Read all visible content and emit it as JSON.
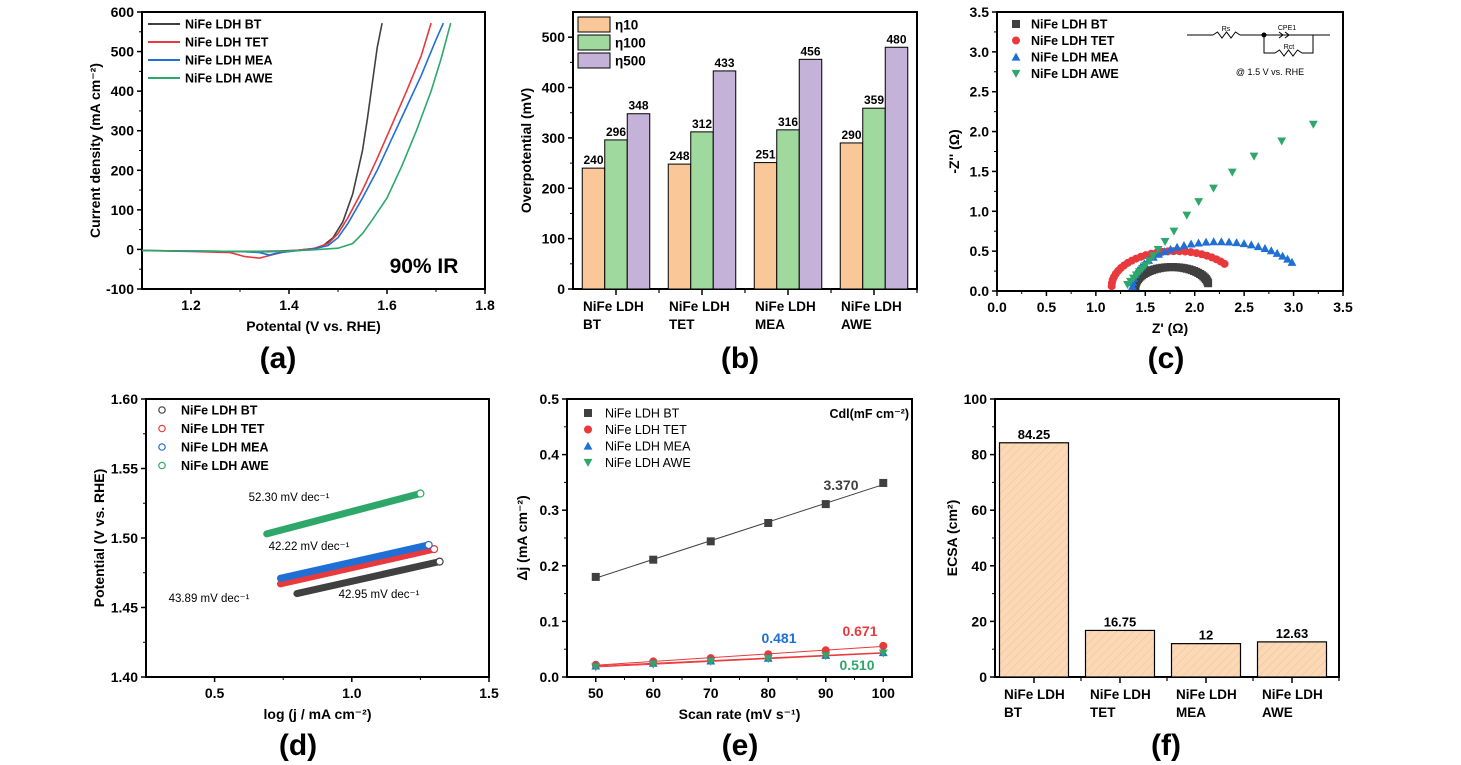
{
  "figure": {
    "panels": [
      "(a)",
      "(b)",
      "(c)",
      "(d)",
      "(e)",
      "(f)"
    ]
  },
  "colors": {
    "BT": "#404040",
    "TET": "#e8393c",
    "MEA": "#1f6fd6",
    "AWE": "#2ea86a",
    "eta10": "#fac898",
    "eta100": "#9fd99e",
    "eta500": "#c4b2d8",
    "ecsa_bar": "#fcd9b6"
  },
  "chart_data": [
    {
      "id": "a",
      "type": "line",
      "panel_label": "(a)",
      "title": "",
      "xlabel": "Potental (V vs. RHE)",
      "ylabel": "Current density (mA cm⁻²)",
      "xlim": [
        1.1,
        1.8
      ],
      "ylim": [
        -100,
        600
      ],
      "xticks": [
        1.2,
        1.4,
        1.6,
        1.8
      ],
      "yticks": [
        -100,
        0,
        100,
        200,
        300,
        400,
        500,
        600
      ],
      "annotation": "90% IR",
      "legend_position": "top-left",
      "series": [
        {
          "name": "NiFe LDH BT",
          "key": "BT",
          "x": [
            1.1,
            1.2,
            1.3,
            1.34,
            1.38,
            1.42,
            1.45,
            1.47,
            1.49,
            1.51,
            1.53,
            1.55,
            1.56,
            1.57,
            1.58,
            1.59
          ],
          "y": [
            -3,
            -4,
            -5,
            -5,
            -4,
            -2,
            2,
            10,
            30,
            70,
            140,
            250,
            330,
            420,
            510,
            572
          ]
        },
        {
          "name": "NiFe LDH TET",
          "key": "TET",
          "x": [
            1.1,
            1.2,
            1.28,
            1.31,
            1.34,
            1.37,
            1.4,
            1.45,
            1.48,
            1.5,
            1.52,
            1.55,
            1.58,
            1.61,
            1.64,
            1.67,
            1.69
          ],
          "y": [
            -3,
            -5,
            -8,
            -18,
            -22,
            -12,
            -4,
            2,
            15,
            40,
            80,
            150,
            230,
            315,
            400,
            490,
            572
          ]
        },
        {
          "name": "NiFe LDH MEA",
          "key": "MEA",
          "x": [
            1.1,
            1.2,
            1.3,
            1.34,
            1.36,
            1.38,
            1.42,
            1.45,
            1.48,
            1.5,
            1.52,
            1.55,
            1.58,
            1.61,
            1.64,
            1.67,
            1.7,
            1.715
          ],
          "y": [
            -3,
            -4,
            -5,
            -8,
            -14,
            -8,
            -3,
            1,
            10,
            30,
            65,
            130,
            200,
            280,
            360,
            440,
            530,
            572
          ]
        },
        {
          "name": "NiFe LDH AWE",
          "key": "AWE",
          "x": [
            1.1,
            1.2,
            1.3,
            1.36,
            1.4,
            1.45,
            1.5,
            1.53,
            1.55,
            1.57,
            1.6,
            1.63,
            1.66,
            1.69,
            1.71,
            1.73
          ],
          "y": [
            -3,
            -4,
            -5,
            -6,
            -4,
            -1,
            3,
            15,
            40,
            75,
            130,
            210,
            300,
            400,
            480,
            572
          ]
        }
      ]
    },
    {
      "id": "b",
      "type": "bar",
      "panel_label": "(b)",
      "title": "",
      "xlabel": "",
      "ylabel": "Overpotential (mV)",
      "ylim": [
        0,
        550
      ],
      "yticks": [
        0,
        100,
        200,
        300,
        400,
        500
      ],
      "categories": [
        [
          "NiFe LDH",
          "BT"
        ],
        [
          "NiFe LDH",
          "TET"
        ],
        [
          "NiFe LDH",
          "MEA"
        ],
        [
          "NiFe LDH",
          "AWE"
        ]
      ],
      "legend_position": "top-left",
      "series": [
        {
          "name": "η10",
          "key": "eta10",
          "values": [
            240,
            248,
            251,
            290
          ]
        },
        {
          "name": "η100",
          "key": "eta100",
          "values": [
            296,
            312,
            316,
            359
          ]
        },
        {
          "name": "η500",
          "key": "eta500",
          "values": [
            348,
            433,
            456,
            480
          ]
        }
      ]
    },
    {
      "id": "c",
      "type": "scatter",
      "panel_label": "(c)",
      "title": "",
      "xlabel": "Z' (Ω)",
      "ylabel": "-Z'' (Ω)",
      "xlim": [
        0,
        3.5
      ],
      "ylim": [
        0,
        3.5
      ],
      "xticks": [
        0.0,
        0.5,
        1.0,
        1.5,
        2.0,
        2.5,
        3.0,
        3.5
      ],
      "yticks": [
        0.0,
        0.5,
        1.0,
        1.5,
        2.0,
        2.5,
        3.0,
        3.5
      ],
      "legend_position": "top-left",
      "inset": {
        "Rs": "Rs",
        "CPE": "CPE1",
        "Rct": "Rct",
        "note": "@ 1.5 V vs. RHE"
      },
      "series": [
        {
          "name": "NiFe LDH BT",
          "key": "BT",
          "marker": "square",
          "semicircle": {
            "r0": 1.4,
            "r1": 2.14,
            "height": 0.3,
            "n": 40,
            "theta_start": 0.0,
            "theta_end": 0.95
          }
        },
        {
          "name": "NiFe LDH TET",
          "key": "TET",
          "marker": "circle",
          "semicircle": {
            "r0": 1.16,
            "r1": 2.45,
            "height": 0.5,
            "n": 28,
            "theta_start": 0.0,
            "theta_end": 0.78
          }
        },
        {
          "name": "NiFe LDH MEA",
          "key": "MEA",
          "marker": "triangle-up",
          "semicircle": {
            "r0": 1.37,
            "r1": 3.12,
            "height": 0.62,
            "n": 30,
            "theta_start": 0.0,
            "theta_end": 0.82
          }
        },
        {
          "name": "NiFe LDH AWE",
          "key": "AWE",
          "marker": "triangle-down",
          "x": [
            1.32,
            1.35,
            1.38,
            1.41,
            1.44,
            1.47,
            1.5,
            1.54,
            1.58,
            1.63,
            1.7,
            1.79,
            1.92,
            2.04,
            2.19,
            2.38,
            2.6,
            2.88,
            3.2
          ],
          "y": [
            0.08,
            0.12,
            0.16,
            0.2,
            0.24,
            0.28,
            0.32,
            0.38,
            0.44,
            0.52,
            0.62,
            0.75,
            0.95,
            1.12,
            1.29,
            1.49,
            1.69,
            1.88,
            2.09
          ]
        }
      ]
    },
    {
      "id": "d",
      "type": "scatter",
      "panel_label": "(d)",
      "title": "",
      "xlabel": "log (j / mA cm⁻²)",
      "ylabel": "Potential (V vs. RHE)",
      "xlim": [
        0.25,
        1.5
      ],
      "ylim": [
        1.4,
        1.6
      ],
      "xticks": [
        0.5,
        1.0,
        1.5
      ],
      "yticks": [
        1.4,
        1.45,
        1.5,
        1.55,
        1.6
      ],
      "legend_position": "top-left",
      "series": [
        {
          "name": "NiFe LDH BT",
          "key": "BT",
          "x0": 0.8,
          "x1": 1.32,
          "y0": 1.46,
          "y1": 1.483,
          "slope_label": "42.95 mV dec⁻¹"
        },
        {
          "name": "NiFe LDH TET",
          "key": "TET",
          "x0": 0.74,
          "x1": 1.3,
          "y0": 1.467,
          "y1": 1.492,
          "slope_label": "43.89 mV dec⁻¹"
        },
        {
          "name": "NiFe LDH MEA",
          "key": "MEA",
          "x0": 0.74,
          "x1": 1.28,
          "y0": 1.471,
          "y1": 1.495,
          "slope_label": "42.22 mV dec⁻¹"
        },
        {
          "name": "NiFe LDH AWE",
          "key": "AWE",
          "x0": 0.69,
          "x1": 1.25,
          "y0": 1.503,
          "y1": 1.532,
          "slope_label": "52.30 mV dec⁻¹"
        }
      ]
    },
    {
      "id": "e",
      "type": "scatter",
      "panel_label": "(e)",
      "title": "",
      "xlabel": "Scan rate (mV s⁻¹)",
      "ylabel": "Δj (mA cm⁻²)",
      "xlim": [
        45,
        105
      ],
      "ylim": [
        0,
        0.5
      ],
      "xticks": [
        50,
        60,
        70,
        80,
        90,
        100
      ],
      "yticks": [
        0.0,
        0.1,
        0.2,
        0.3,
        0.4,
        0.5
      ],
      "legend_position": "top-left",
      "cdl_header": "Cdl(mF cm⁻²)",
      "series": [
        {
          "name": "NiFe LDH BT",
          "key": "BT",
          "marker": "square",
          "x": [
            50,
            60,
            70,
            80,
            90,
            100
          ],
          "y": [
            0.18,
            0.211,
            0.244,
            0.277,
            0.311,
            0.349
          ],
          "cdl": "3.370"
        },
        {
          "name": "NiFe LDH TET",
          "key": "TET",
          "marker": "circle",
          "x": [
            50,
            60,
            70,
            80,
            90,
            100
          ],
          "y": [
            0.022,
            0.028,
            0.034,
            0.041,
            0.048,
            0.056
          ],
          "cdl": "0.671"
        },
        {
          "name": "NiFe LDH MEA",
          "key": "MEA",
          "marker": "triangle-up",
          "x": [
            50,
            60,
            70,
            80,
            90,
            100
          ],
          "y": [
            0.02,
            0.025,
            0.029,
            0.034,
            0.039,
            0.044
          ],
          "cdl": "0.481"
        },
        {
          "name": "NiFe LDH AWE",
          "key": "AWE",
          "marker": "triangle-down",
          "x": [
            50,
            60,
            70,
            80,
            90,
            100
          ],
          "y": [
            0.018,
            0.023,
            0.028,
            0.033,
            0.038,
            0.043
          ],
          "cdl": "0.510"
        }
      ]
    },
    {
      "id": "f",
      "type": "bar",
      "panel_label": "(f)",
      "title": "",
      "xlabel": "",
      "ylabel": "ECSA (cm²)",
      "ylim": [
        0,
        100
      ],
      "yticks": [
        0,
        20,
        40,
        60,
        80,
        100
      ],
      "categories": [
        [
          "NiFe LDH",
          "BT"
        ],
        [
          "NiFe LDH",
          "TET"
        ],
        [
          "NiFe LDH",
          "MEA"
        ],
        [
          "NiFe LDH",
          "AWE"
        ]
      ],
      "values": [
        84.25,
        16.75,
        12,
        12.63
      ],
      "value_labels": [
        "84.25",
        "16.75",
        "12",
        "12.63"
      ]
    }
  ]
}
